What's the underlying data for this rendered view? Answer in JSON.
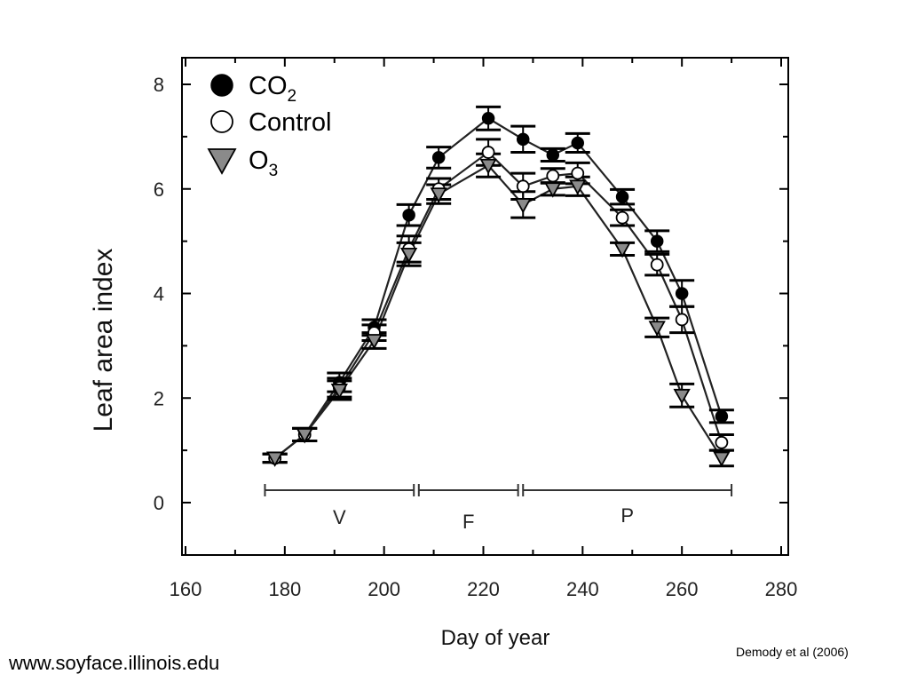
{
  "chart_data": {
    "type": "line",
    "xlabel": "Day of year",
    "ylabel": "Leaf area index",
    "xlim": [
      160,
      280
    ],
    "ylim": [
      -1,
      8.5
    ],
    "x_ticks": [
      "160",
      "180",
      "200",
      "220",
      "240",
      "260",
      "280"
    ],
    "y_ticks": [
      "0",
      "2",
      "4",
      "6",
      "8"
    ],
    "grid": false,
    "legend_position": "top-left",
    "series": [
      {
        "name": "CO",
        "name_subscript": "2",
        "marker": "filled-circle",
        "color": "#000000",
        "x": [
          178,
          184,
          191,
          198,
          205,
          211,
          221,
          228,
          234,
          239,
          248,
          255,
          260,
          268
        ],
        "y": [
          0.85,
          1.3,
          2.3,
          3.35,
          5.5,
          6.6,
          7.35,
          6.95,
          6.65,
          6.88,
          5.85,
          5.0,
          4.0,
          1.65
        ],
        "err": [
          0.08,
          0.12,
          0.18,
          0.15,
          0.2,
          0.2,
          0.22,
          0.25,
          0.12,
          0.18,
          0.14,
          0.2,
          0.25,
          0.12
        ]
      },
      {
        "name": "Control",
        "marker": "open-circle",
        "color": "#ffffff",
        "x": [
          178,
          184,
          191,
          198,
          205,
          211,
          221,
          228,
          234,
          239,
          248,
          255,
          260,
          268
        ],
        "y": [
          0.85,
          1.3,
          2.2,
          3.25,
          4.85,
          6.0,
          6.7,
          6.05,
          6.25,
          6.3,
          5.45,
          4.55,
          3.5,
          1.15
        ],
        "err": [
          0.08,
          0.12,
          0.18,
          0.15,
          0.25,
          0.2,
          0.25,
          0.25,
          0.14,
          0.2,
          0.15,
          0.2,
          0.25,
          0.15
        ]
      },
      {
        "name": "O",
        "name_subscript": "3",
        "marker": "gray-triangle",
        "color": "#888888",
        "x": [
          178,
          184,
          191,
          198,
          205,
          211,
          221,
          228,
          234,
          239,
          248,
          255,
          260,
          268
        ],
        "y": [
          0.85,
          1.3,
          2.15,
          3.1,
          4.75,
          5.9,
          6.45,
          5.7,
          6.0,
          6.05,
          4.85,
          3.35,
          2.05,
          0.85
        ],
        "err": [
          0.08,
          0.12,
          0.18,
          0.15,
          0.22,
          0.18,
          0.22,
          0.25,
          0.12,
          0.18,
          0.12,
          0.18,
          0.22,
          0.15
        ]
      }
    ],
    "growth_stages": [
      {
        "label": "V",
        "start": 176,
        "end": 206
      },
      {
        "label": "F",
        "start": 207,
        "end": 227
      },
      {
        "label": "P",
        "start": 228,
        "end": 270
      }
    ]
  },
  "footer": {
    "url": "www.soyface.illinois.edu",
    "citation": "Demody et al (2006)"
  }
}
